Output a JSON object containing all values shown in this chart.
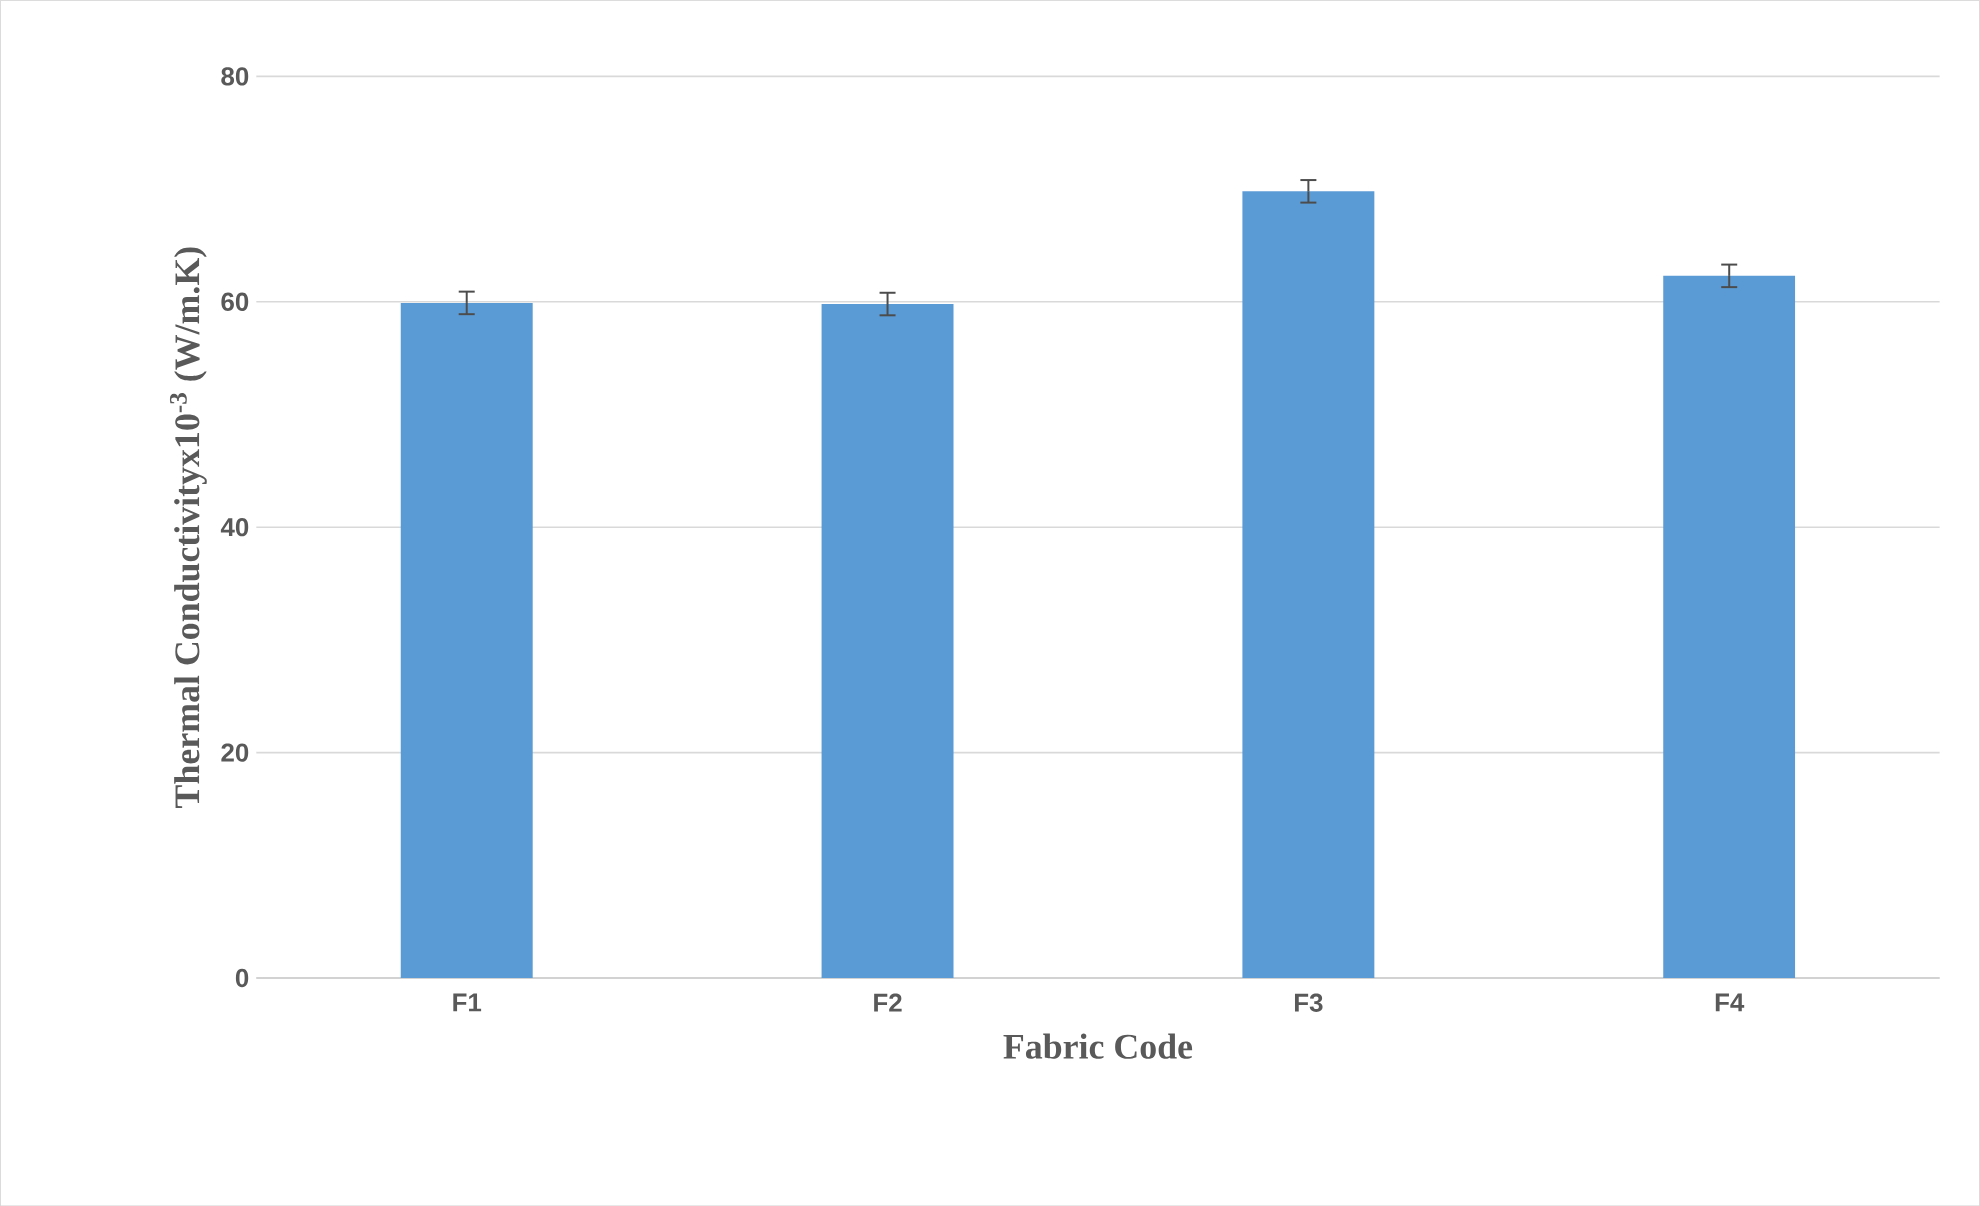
{
  "chart_data": {
    "type": "bar",
    "xlabel": "Fabric Code",
    "ylabel": "Thermal  Conductivityx10$^{-3}$ (W/m.K)",
    "categories": [
      "F1",
      "F2",
      "F3",
      "F4"
    ],
    "values": [
      59.9,
      59.8,
      69.8,
      62.3
    ],
    "errors": [
      1,
      1,
      1,
      1
    ],
    "color": "#5b9bd5",
    "ylim": [
      0,
      80
    ],
    "yticks": [
      0,
      20,
      40,
      60,
      80
    ],
    "grid": "y"
  }
}
